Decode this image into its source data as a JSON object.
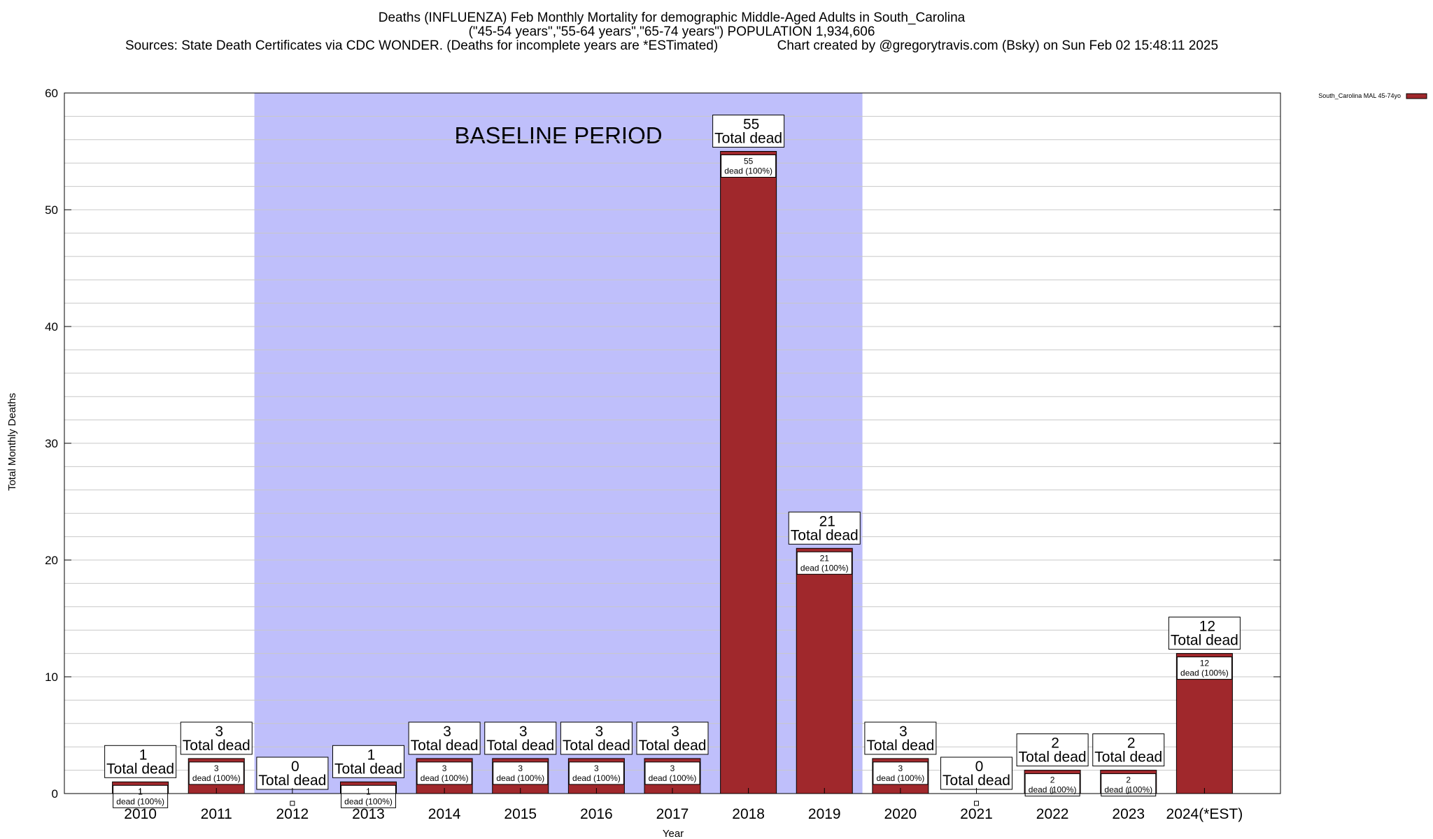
{
  "header": {
    "line1": "Deaths (INFLUENZA) Feb Monthly Mortality for demographic Middle-Aged Adults in South_Carolina",
    "line2": "(\"45-54 years\",\"55-64 years\",\"65-74 years\") POPULATION 1,934,606",
    "line3": "Sources: State Death Certificates via CDC WONDER. (Deaths for incomplete years are *ESTimated)                Chart created by @gregorytravis.com (Bsky) on Sun Feb 02 15:48:11 2025"
  },
  "colors": {
    "bar": "#a0282c",
    "baseline_band": "#bfbffb",
    "grid": "#c8c8c8"
  },
  "chart_data": {
    "type": "bar",
    "xlabel": "Year",
    "ylabel": "Total Monthly Deaths",
    "ylim": [
      0,
      60
    ],
    "yticks": [
      0,
      10,
      20,
      30,
      40,
      50,
      60
    ],
    "grid": true,
    "legend": {
      "position": "top-right",
      "label": "South_Carolina MAL 45-74yo"
    },
    "categories": [
      "2010",
      "2011",
      "2012",
      "2013",
      "2014",
      "2015",
      "2016",
      "2017",
      "2018",
      "2019",
      "2020",
      "2021",
      "2022",
      "2023",
      "2024(*EST)"
    ],
    "series": [
      {
        "name": "South_Carolina MAL 45-74yo",
        "values": [
          1,
          3,
          0,
          1,
          3,
          3,
          3,
          3,
          55,
          21,
          3,
          0,
          2,
          2,
          12
        ]
      }
    ],
    "total_label": "Total dead",
    "segment_label": "dead (100%)",
    "baseline": {
      "label": "BASELINE PERIOD",
      "from": "2012",
      "to": "2019"
    }
  }
}
